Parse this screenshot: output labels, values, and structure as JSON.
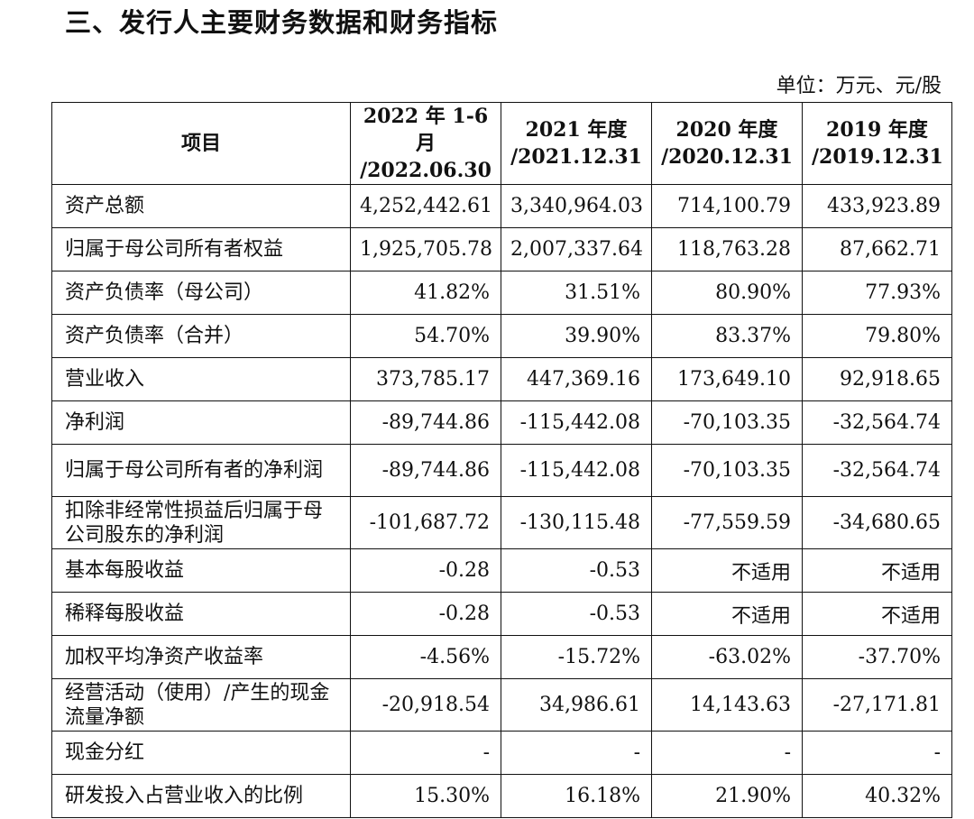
{
  "title": "三、发行人主要财务数据和财务指标",
  "unit": "单位：万元、元/股",
  "table": {
    "headers": [
      {
        "line1": "项目",
        "line2": ""
      },
      {
        "line1": "2022 年 1-6 月",
        "line2": "/2022.06.30"
      },
      {
        "line1": "2021 年度",
        "line2": "/2021.12.31"
      },
      {
        "line1": "2020 年度",
        "line2": "/2020.12.31"
      },
      {
        "line1": "2019 年度",
        "line2": "/2019.12.31"
      }
    ],
    "rows": [
      {
        "label": "资产总额",
        "values": [
          "4,252,442.61",
          "3,340,964.03",
          "714,100.79",
          "433,923.89"
        ]
      },
      {
        "label": "归属于母公司所有者权益",
        "values": [
          "1,925,705.78",
          "2,007,337.64",
          "118,763.28",
          "87,662.71"
        ]
      },
      {
        "label": "资产负债率（母公司）",
        "values": [
          "41.82%",
          "31.51%",
          "80.90%",
          "77.93%"
        ]
      },
      {
        "label": "资产负债率（合并）",
        "values": [
          "54.70%",
          "39.90%",
          "83.37%",
          "79.80%"
        ]
      },
      {
        "label": "营业收入",
        "values": [
          "373,785.17",
          "447,369.16",
          "173,649.10",
          "92,918.65"
        ]
      },
      {
        "label": "净利润",
        "values": [
          "-89,744.86",
          "-115,442.08",
          "-70,103.35",
          "-32,564.74"
        ]
      },
      {
        "label": "归属于母公司所有者的净利润",
        "values": [
          "-89,744.86",
          "-115,442.08",
          "-70,103.35",
          "-32,564.74"
        ]
      },
      {
        "label": "扣除非经常性损益后归属于母公司股东的净利润",
        "values": [
          "-101,687.72",
          "-130,115.48",
          "-77,559.59",
          "-34,680.65"
        ]
      },
      {
        "label": "基本每股收益",
        "values": [
          "-0.28",
          "-0.53",
          "不适用",
          "不适用"
        ]
      },
      {
        "label": "稀释每股收益",
        "values": [
          "-0.28",
          "-0.53",
          "不适用",
          "不适用"
        ]
      },
      {
        "label": "加权平均净资产收益率",
        "values": [
          "-4.56%",
          "-15.72%",
          "-63.02%",
          "-37.70%"
        ]
      },
      {
        "label": "经营活动（使用）/产生的现金流量净额",
        "values": [
          "-20,918.54",
          "34,986.61",
          "14,143.63",
          "-27,171.81"
        ]
      },
      {
        "label": "现金分红",
        "values": [
          "-",
          "-",
          "-",
          "-"
        ]
      },
      {
        "label": "研发投入占营业收入的比例",
        "values": [
          "15.30%",
          "16.18%",
          "21.90%",
          "40.32%"
        ]
      }
    ]
  }
}
